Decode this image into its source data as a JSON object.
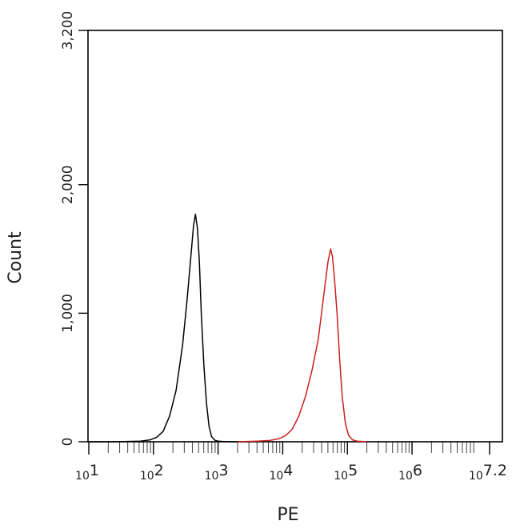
{
  "chart_data": {
    "type": "line",
    "title": "",
    "xlabel": "PE",
    "ylabel": "Count",
    "x_scale": "log10",
    "xlim": [
      1,
      7.2
    ],
    "ylim": [
      0,
      3200
    ],
    "x_ticks": [
      {
        "exp": 1,
        "base": "10",
        "power": "1"
      },
      {
        "exp": 2,
        "base": "10",
        "power": "2"
      },
      {
        "exp": 3,
        "base": "10",
        "power": "3"
      },
      {
        "exp": 4,
        "base": "10",
        "power": "4"
      },
      {
        "exp": 5,
        "base": "10",
        "power": "5"
      },
      {
        "exp": 6,
        "base": "10",
        "power": "6"
      },
      {
        "exp": 7.2,
        "base": "10",
        "power": "7.2"
      }
    ],
    "y_ticks": [
      {
        "value": 0,
        "label": "0"
      },
      {
        "value": 1000,
        "label": "1,000"
      },
      {
        "value": 2000,
        "label": "2,000"
      },
      {
        "value": 3200,
        "label": "3,200"
      }
    ],
    "grid": false,
    "legend": "none",
    "series": [
      {
        "color": "#000000",
        "x_log10": [
          1.0,
          1.4,
          1.8,
          1.95,
          2.05,
          2.15,
          2.25,
          2.35,
          2.45,
          2.52,
          2.58,
          2.62,
          2.65,
          2.68,
          2.71,
          2.74,
          2.78,
          2.82,
          2.86,
          2.9,
          2.95,
          3.0,
          3.05,
          3.1,
          3.18,
          3.3,
          3.5
        ],
        "y": [
          0,
          0,
          5,
          15,
          35,
          80,
          200,
          400,
          750,
          1100,
          1450,
          1680,
          1770,
          1660,
          1400,
          1000,
          600,
          300,
          120,
          40,
          12,
          5,
          3,
          2,
          1,
          0,
          0
        ]
      },
      {
        "color": "#cc1f1f",
        "x_log10": [
          3.3,
          3.6,
          3.8,
          3.95,
          4.05,
          4.15,
          4.25,
          4.35,
          4.45,
          4.55,
          4.6,
          4.65,
          4.7,
          4.74,
          4.77,
          4.8,
          4.84,
          4.88,
          4.92,
          4.97,
          5.02,
          5.08,
          5.15,
          5.3
        ],
        "y": [
          0,
          5,
          10,
          25,
          50,
          100,
          200,
          350,
          550,
          800,
          1000,
          1200,
          1400,
          1500,
          1440,
          1270,
          1000,
          650,
          350,
          140,
          50,
          15,
          5,
          0
        ]
      }
    ]
  }
}
